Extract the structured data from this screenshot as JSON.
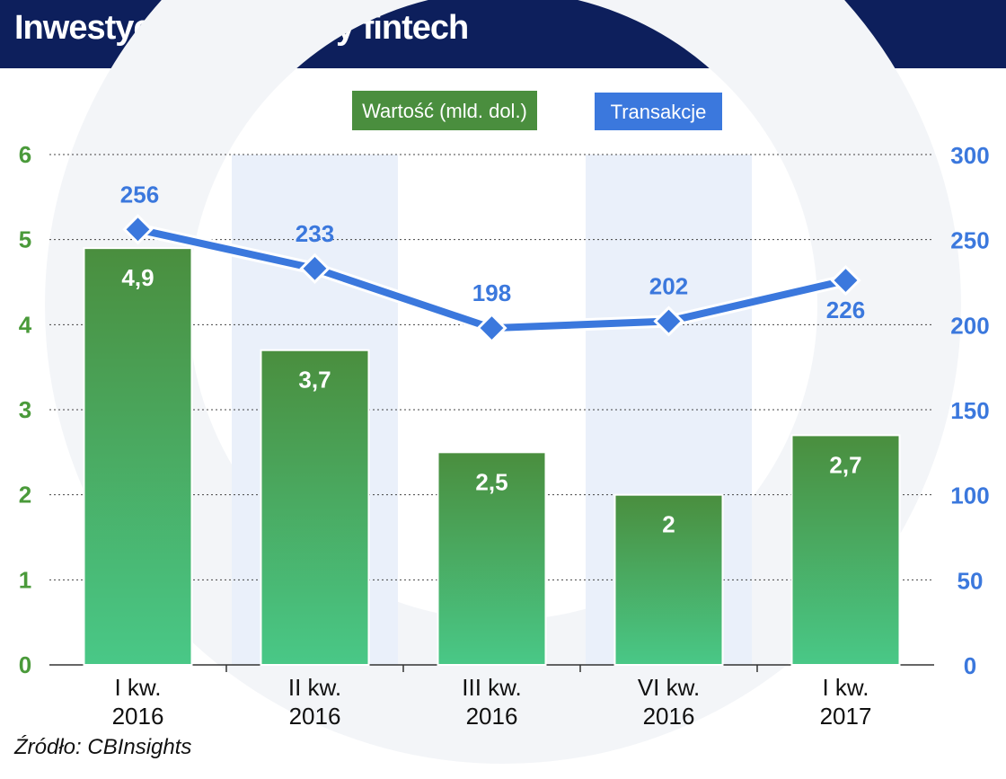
{
  "title": "Inwestycje VC w firmy fintech",
  "source": "Źródło: CBInsights",
  "colors": {
    "header_bg": "#0d1f5c",
    "bar_top": "#4a8e3e",
    "bar_bottom": "#49c887",
    "line": "#3b78dd",
    "left_axis_text": "#4a9a3a",
    "right_axis_text": "#3b78dd",
    "band": "#eaf0fa"
  },
  "chart_data": {
    "type": "bar+line",
    "categories": [
      [
        "I kw.",
        "2016"
      ],
      [
        "II kw.",
        "2016"
      ],
      [
        "III kw.",
        "2016"
      ],
      [
        "VI kw.",
        "2016"
      ],
      [
        "I kw.",
        "2017"
      ]
    ],
    "series": [
      {
        "name": "Wartość (mld. dol.)",
        "type": "bar",
        "axis": "left",
        "values": [
          4.9,
          3.7,
          2.5,
          2,
          2.7
        ],
        "labels": [
          "4,9",
          "3,7",
          "2,5",
          "2",
          "2,7"
        ]
      },
      {
        "name": "Transakcje",
        "type": "line",
        "axis": "right",
        "values": [
          256,
          233,
          198,
          202,
          226
        ],
        "labels": [
          "256",
          "233",
          "198",
          "202",
          "226"
        ]
      }
    ],
    "left_axis": {
      "min": 0,
      "max": 6,
      "ticks": [
        "0",
        "1",
        "2",
        "3",
        "4",
        "5",
        "6"
      ]
    },
    "right_axis": {
      "min": 0,
      "max": 300,
      "ticks": [
        "0",
        "50",
        "100",
        "150",
        "200",
        "250",
        "300"
      ]
    },
    "gridlines": true,
    "legend_position": "top-center"
  }
}
